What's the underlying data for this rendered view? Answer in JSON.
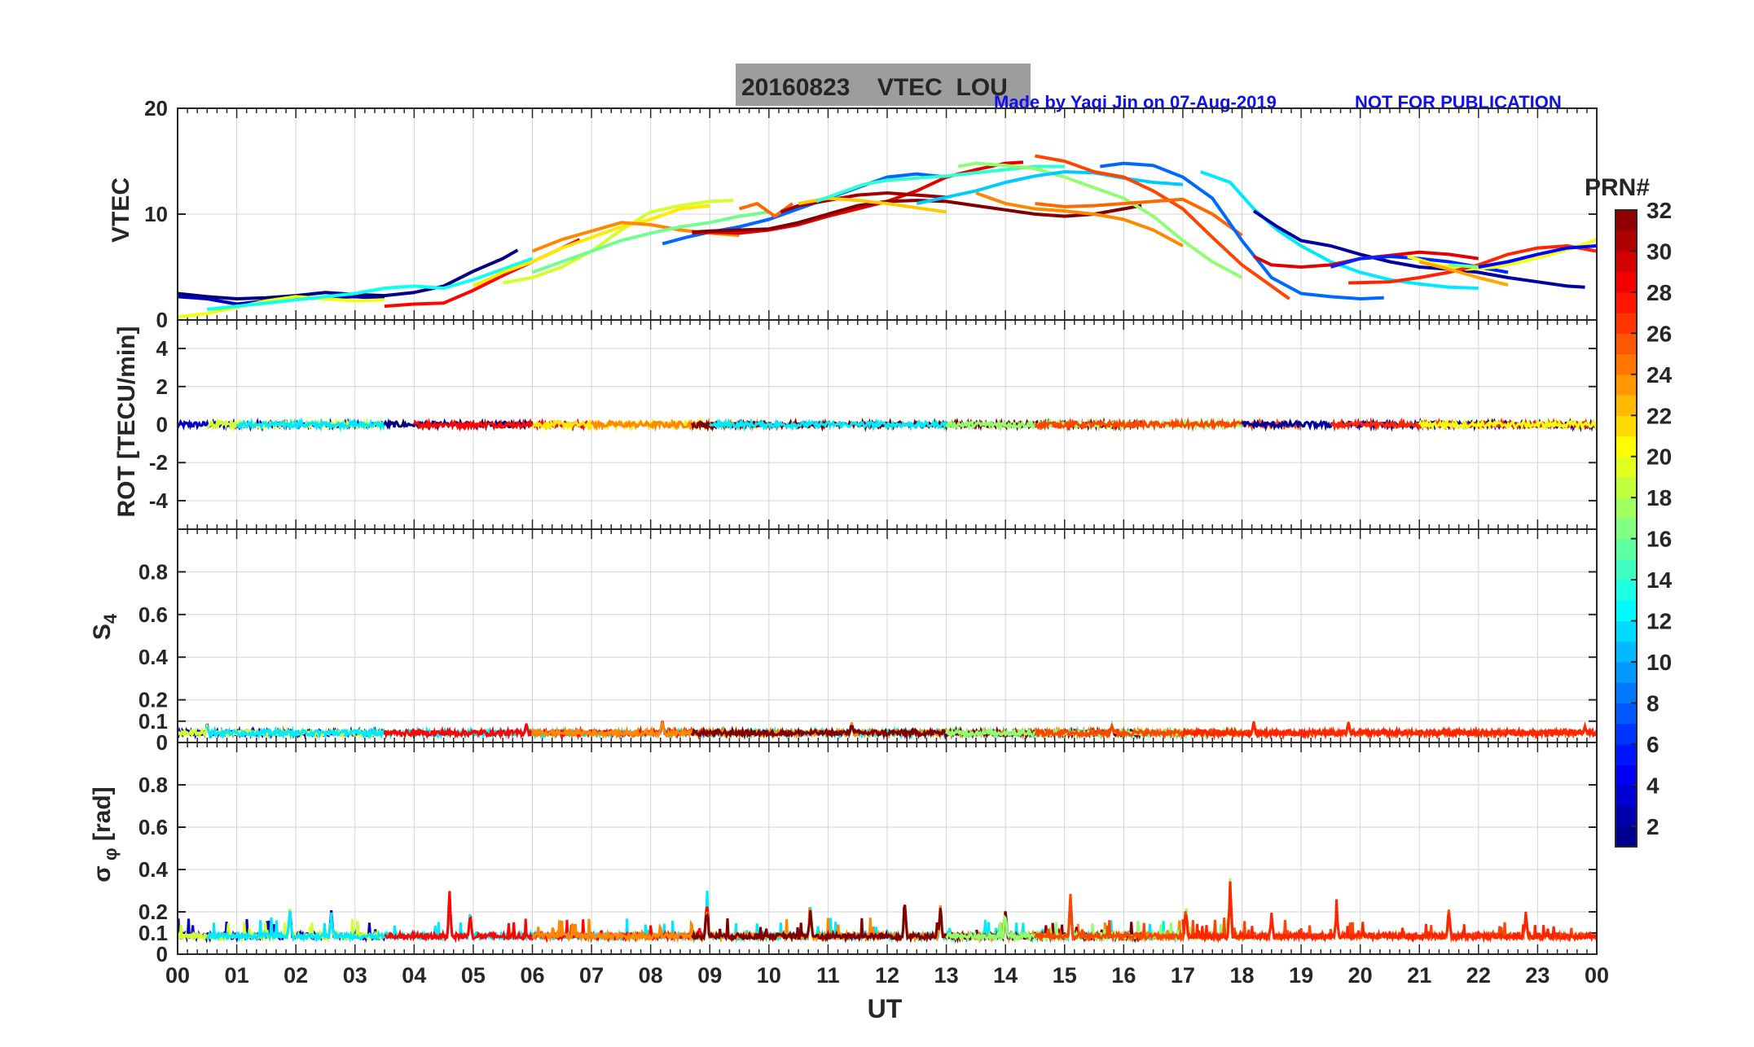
{
  "header": {
    "title": "20160823    VTEC  LOU",
    "credit": "Made by Yaqi Jin on 07-Aug-2019",
    "notice": "NOT FOR PUBLICATION"
  },
  "colorbar": {
    "title": "PRN#",
    "range": [
      1,
      32
    ],
    "ticks": [
      "2",
      "4",
      "6",
      "8",
      "10",
      "12",
      "14",
      "16",
      "18",
      "20",
      "22",
      "24",
      "26",
      "28",
      "30",
      "32"
    ]
  },
  "chart_data": [
    {
      "type": "line",
      "ylabel": "VTEC",
      "xlabel": "",
      "xlim": [
        0,
        24
      ],
      "ylim": [
        0,
        20
      ],
      "yticks": [
        "0",
        "10",
        "20"
      ],
      "series": [
        {
          "prn": 3,
          "x": [
            0,
            0.5,
            1,
            1.5,
            2,
            2.5,
            3,
            3.5
          ],
          "y": [
            2.2,
            2.0,
            1.5,
            1.8,
            2.0,
            2.1,
            2.2,
            2.0
          ]
        },
        {
          "prn": 1,
          "x": [
            0,
            0.5,
            1,
            1.5,
            2,
            2.5,
            3,
            3.5,
            4,
            4.5,
            5,
            5.5,
            5.75
          ],
          "y": [
            2.5,
            2.2,
            2.0,
            2.1,
            2.3,
            2.6,
            2.4,
            2.3,
            2.6,
            3.2,
            4.6,
            5.8,
            6.6
          ]
        },
        {
          "prn": 20,
          "x": [
            0,
            0.5,
            1,
            1.5,
            2,
            2.5,
            3,
            3.5
          ],
          "y": [
            0.3,
            0.6,
            1.2,
            1.8,
            2.2,
            2.0,
            1.8,
            1.9
          ]
        },
        {
          "prn": 13,
          "x": [
            0.5,
            1,
            1.5,
            2,
            2.5,
            3,
            3.5,
            4,
            4.5,
            5,
            5.5,
            6
          ],
          "y": [
            1.0,
            1.3,
            1.6,
            1.9,
            2.2,
            2.5,
            3.0,
            3.2,
            3.0,
            3.8,
            4.8,
            5.8
          ]
        },
        {
          "prn": 28,
          "x": [
            3.5,
            4,
            4.5,
            5,
            5.5,
            6,
            6.5,
            6.8
          ],
          "y": [
            1.3,
            1.5,
            1.6,
            2.8,
            4.2,
            5.5,
            6.8,
            7.6
          ]
        },
        {
          "prn": 19,
          "x": [
            5.5,
            6,
            6.5,
            7,
            7.5,
            8,
            8.5,
            9,
            9.4
          ],
          "y": [
            3.5,
            4.0,
            5.0,
            6.5,
            8.5,
            10.2,
            10.8,
            11.2,
            11.3
          ]
        },
        {
          "prn": 21,
          "x": [
            5,
            5.5,
            6,
            6.5,
            7,
            7.5,
            8,
            8.5,
            9
          ],
          "y": [
            3.2,
            4.5,
            5.5,
            6.8,
            7.8,
            8.8,
            9.5,
            10.5,
            10.8
          ]
        },
        {
          "prn": 24,
          "x": [
            6,
            6.5,
            7,
            7.5,
            8,
            8.5,
            9,
            9.5
          ],
          "y": [
            6.5,
            7.6,
            8.4,
            9.2,
            9.0,
            8.5,
            8.2,
            8.0
          ]
        },
        {
          "prn": 16,
          "x": [
            6,
            6.5,
            7,
            7.5,
            8,
            8.5,
            9,
            9.5,
            10
          ],
          "y": [
            4.5,
            5.5,
            6.5,
            7.5,
            8.2,
            8.8,
            9.2,
            9.8,
            10.2
          ]
        },
        {
          "prn": 8,
          "x": [
            8.2,
            8.6,
            9,
            9.5,
            10,
            10.5,
            11,
            11.5,
            12,
            12.5,
            13
          ],
          "y": [
            7.2,
            7.8,
            8.3,
            8.8,
            9.5,
            10.5,
            11.5,
            12.5,
            13.5,
            13.8,
            13.5
          ]
        },
        {
          "prn": 25,
          "x": [
            9.5,
            9.8,
            10.1,
            10.4
          ],
          "y": [
            10.5,
            11.0,
            9.8,
            11.0
          ]
        },
        {
          "prn": 29,
          "x": [
            8.7,
            9,
            9.5,
            10,
            10.5,
            11,
            11.5,
            12,
            12.5,
            13,
            13.5,
            14,
            14.3
          ],
          "y": [
            8.2,
            8.3,
            8.2,
            8.5,
            9.0,
            9.8,
            10.5,
            11.2,
            12.2,
            13.5,
            14.2,
            14.8,
            14.9
          ]
        },
        {
          "prn": 32,
          "x": [
            8.7,
            9,
            9.5,
            10,
            10.5,
            11,
            11.5,
            12,
            12.5,
            13,
            13.5,
            14,
            14.5,
            15,
            15.5,
            16,
            16.3
          ],
          "y": [
            8.3,
            8.4,
            8.5,
            8.6,
            9.2,
            10.0,
            10.8,
            11.2,
            11.3,
            11.2,
            10.8,
            10.4,
            10.0,
            9.8,
            10.0,
            10.5,
            10.8
          ]
        },
        {
          "prn": 31,
          "x": [
            10.2,
            10.5,
            11,
            11.5,
            12,
            12.5,
            13
          ],
          "y": [
            10.2,
            10.8,
            11.3,
            11.8,
            12.0,
            11.8,
            11.6
          ]
        },
        {
          "prn": 22,
          "x": [
            10.5,
            11,
            11.5,
            12,
            12.5,
            13
          ],
          "y": [
            11.0,
            11.5,
            11.3,
            11.0,
            10.6,
            10.2
          ]
        },
        {
          "prn": 14,
          "x": [
            10.8,
            11.2,
            11.6,
            12,
            12.5,
            13,
            13.5,
            14,
            14.5,
            15
          ],
          "y": [
            11.2,
            12.0,
            12.8,
            13.2,
            13.4,
            13.6,
            13.9,
            14.2,
            14.5,
            14.5
          ]
        },
        {
          "prn": 17,
          "x": [
            13.2,
            13.5,
            14,
            14.5,
            15,
            15.5,
            16,
            16.5,
            17,
            17.5,
            18
          ],
          "y": [
            14.5,
            14.8,
            14.6,
            14.3,
            13.5,
            12.5,
            11.5,
            9.8,
            7.5,
            5.5,
            4.0
          ]
        },
        {
          "prn": 11,
          "x": [
            12.5,
            13,
            13.5,
            14,
            14.5,
            15,
            15.5,
            16,
            16.5,
            17
          ],
          "y": [
            11.0,
            11.6,
            12.2,
            13.0,
            13.6,
            14.0,
            13.9,
            13.4,
            13.0,
            12.8
          ]
        },
        {
          "prn": 26,
          "x": [
            14.5,
            15,
            15.5,
            16,
            16.5,
            17,
            17.5,
            18,
            18.5,
            18.8
          ],
          "y": [
            15.5,
            15.0,
            14.0,
            13.5,
            12.2,
            10.5,
            7.8,
            5.2,
            3.2,
            2.0
          ]
        },
        {
          "prn": 25,
          "x": [
            14.5,
            15,
            15.5,
            16,
            16.5,
            17,
            17.5,
            18
          ],
          "y": [
            11.0,
            10.7,
            10.8,
            11.0,
            11.2,
            11.4,
            10.0,
            8.0
          ]
        },
        {
          "prn": 24,
          "x": [
            13.5,
            14,
            14.5,
            15,
            15.5,
            16,
            16.5,
            17
          ],
          "y": [
            12.0,
            11.0,
            10.5,
            10.3,
            10.0,
            9.5,
            8.5,
            7.0
          ]
        },
        {
          "prn": 8,
          "x": [
            15.6,
            16,
            16.5,
            17,
            17.5,
            18,
            18.5,
            19,
            19.5,
            20,
            20.4
          ],
          "y": [
            14.5,
            14.8,
            14.6,
            13.5,
            11.5,
            7.5,
            4.0,
            2.5,
            2.2,
            2.0,
            2.1
          ]
        },
        {
          "prn": 12,
          "x": [
            17.3,
            17.8,
            18.2,
            18.6,
            19,
            19.5,
            20,
            20.5,
            21,
            21.5,
            22
          ],
          "y": [
            14.0,
            13.0,
            10.5,
            8.5,
            7.0,
            5.5,
            4.5,
            3.8,
            3.4,
            3.1,
            3.0
          ]
        },
        {
          "prn": 2,
          "x": [
            18.2,
            18.6,
            19,
            19.5,
            20,
            20.5,
            21,
            21.5,
            22,
            22.5,
            23,
            23.5,
            23.8
          ],
          "y": [
            10.3,
            8.8,
            7.5,
            7.0,
            6.2,
            5.5,
            5.0,
            4.8,
            4.5,
            4.0,
            3.6,
            3.2,
            3.1
          ]
        },
        {
          "prn": 29,
          "x": [
            18.2,
            18.5,
            19,
            19.5,
            20,
            20.5,
            21,
            21.5,
            22
          ],
          "y": [
            6.0,
            5.2,
            5.0,
            5.2,
            5.8,
            6.1,
            6.4,
            6.2,
            5.8
          ]
        },
        {
          "prn": 6,
          "x": [
            19.5,
            20,
            20.5,
            21,
            21.5,
            22,
            22.5
          ],
          "y": [
            5.0,
            5.8,
            6.0,
            5.8,
            5.5,
            5.0,
            4.5
          ]
        },
        {
          "prn": 20,
          "x": [
            20.8,
            21.3,
            21.8,
            22.3,
            22.8,
            23.3,
            23.8,
            24
          ],
          "y": [
            6.0,
            5.2,
            4.8,
            5.0,
            5.6,
            6.3,
            7.2,
            7.6
          ]
        },
        {
          "prn": 27,
          "x": [
            19.8,
            20.5,
            21,
            21.5,
            22,
            22.5,
            23,
            23.5,
            24
          ],
          "y": [
            3.5,
            3.6,
            4.0,
            4.5,
            5.2,
            6.2,
            6.8,
            7.0,
            6.5
          ]
        },
        {
          "prn": 16,
          "x": [
            21.5,
            22,
            22.5,
            23,
            23.5,
            24
          ],
          "y": [
            5.2,
            5.0,
            5.5,
            6.2,
            6.8,
            7.0
          ]
        },
        {
          "prn": 23,
          "x": [
            21,
            21.5,
            22,
            22.5
          ],
          "y": [
            5.5,
            4.8,
            4.0,
            3.3
          ]
        },
        {
          "prn": 5,
          "x": [
            22,
            22.5,
            23,
            23.5,
            24
          ],
          "y": [
            5.0,
            5.5,
            6.2,
            6.8,
            7.0
          ]
        }
      ]
    },
    {
      "type": "scatter",
      "ylabel": "ROT [TECU/min]",
      "xlim": [
        0,
        24
      ],
      "ylim": [
        -5.5,
        5.5
      ],
      "yticks": [
        "-4",
        "-2",
        "0",
        "2",
        "4"
      ],
      "baseline": 0,
      "typical_spread": 0.15,
      "segments": [
        {
          "prn": 3,
          "start": 0,
          "end": 3.5
        },
        {
          "prn": 19,
          "start": 0.5,
          "end": 3.5
        },
        {
          "prn": 12,
          "start": 1,
          "end": 3.5
        },
        {
          "prn": 1,
          "start": 3.5,
          "end": 6
        },
        {
          "prn": 28,
          "start": 4,
          "end": 7
        },
        {
          "prn": 21,
          "start": 6,
          "end": 9
        },
        {
          "prn": 24,
          "start": 7,
          "end": 10
        },
        {
          "prn": 32,
          "start": 8.7,
          "end": 16.3
        },
        {
          "prn": 12,
          "start": 9,
          "end": 13
        },
        {
          "prn": 17,
          "start": 13,
          "end": 18
        },
        {
          "prn": 26,
          "start": 14.5,
          "end": 19
        },
        {
          "prn": 2,
          "start": 18,
          "end": 24
        },
        {
          "prn": 27,
          "start": 19.5,
          "end": 24
        },
        {
          "prn": 20,
          "start": 21,
          "end": 24
        }
      ]
    },
    {
      "type": "scatter",
      "ylabel": "S4",
      "xlim": [
        0,
        24
      ],
      "ylim": [
        0,
        1
      ],
      "yticks": [
        "0",
        "0.1",
        "0.2",
        "0.4",
        "0.6",
        "0.8"
      ],
      "baseline": 0.04,
      "peaks": [
        {
          "x": 0.5,
          "y": 0.09
        },
        {
          "x": 5.9,
          "y": 0.1
        },
        {
          "x": 8.2,
          "y": 0.12
        },
        {
          "x": 11.4,
          "y": 0.1
        },
        {
          "x": 15.8,
          "y": 0.09
        },
        {
          "x": 18.2,
          "y": 0.1
        },
        {
          "x": 19.8,
          "y": 0.1
        },
        {
          "x": 23.8,
          "y": 0.08
        }
      ]
    },
    {
      "type": "scatter",
      "ylabel": "σφ [rad]",
      "xlim": [
        0,
        24
      ],
      "ylim": [
        0,
        1
      ],
      "yticks": [
        "0",
        "0.1",
        "0.2",
        "0.4",
        "0.6",
        "0.8"
      ],
      "baseline": 0.08,
      "peaks": [
        {
          "x": 1.9,
          "y": 0.23
        },
        {
          "x": 2.6,
          "y": 0.21
        },
        {
          "x": 4.6,
          "y": 0.3
        },
        {
          "x": 4.95,
          "y": 0.22
        },
        {
          "x": 8.95,
          "y": 0.28
        },
        {
          "x": 10.7,
          "y": 0.25
        },
        {
          "x": 12.3,
          "y": 0.26
        },
        {
          "x": 12.9,
          "y": 0.24
        },
        {
          "x": 14.0,
          "y": 0.23
        },
        {
          "x": 15.1,
          "y": 0.31
        },
        {
          "x": 17.05,
          "y": 0.26
        },
        {
          "x": 17.8,
          "y": 0.36
        },
        {
          "x": 18.5,
          "y": 0.2
        },
        {
          "x": 19.6,
          "y": 0.23
        },
        {
          "x": 21.5,
          "y": 0.24
        },
        {
          "x": 22.8,
          "y": 0.23
        }
      ]
    }
  ],
  "x_axis": {
    "title": "UT",
    "ticks": [
      "00",
      "01",
      "02",
      "03",
      "04",
      "05",
      "06",
      "07",
      "08",
      "09",
      "10",
      "11",
      "12",
      "13",
      "14",
      "15",
      "16",
      "17",
      "18",
      "19",
      "20",
      "21",
      "22",
      "23",
      "00"
    ]
  }
}
